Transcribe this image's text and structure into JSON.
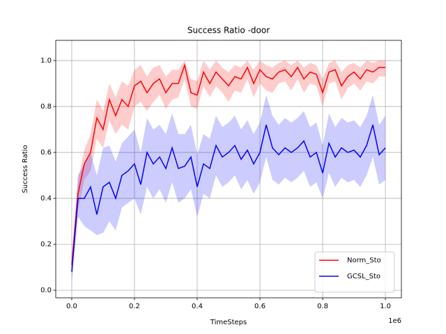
{
  "chart_data": {
    "type": "line",
    "title": "Success Ratio -door",
    "x_label": "TimeSteps",
    "y_label": "Success Ratio",
    "x_offset_label": "1e6",
    "x": [
      0,
      0.02,
      0.04,
      0.06,
      0.08,
      0.1,
      0.12,
      0.14,
      0.16,
      0.18,
      0.2,
      0.22,
      0.24,
      0.26,
      0.28,
      0.3,
      0.32,
      0.34,
      0.36,
      0.38,
      0.4,
      0.42,
      0.44,
      0.46,
      0.48,
      0.5,
      0.52,
      0.54,
      0.56,
      0.58,
      0.6,
      0.62,
      0.64,
      0.66,
      0.68,
      0.7,
      0.72,
      0.74,
      0.76,
      0.78,
      0.8,
      0.82,
      0.84,
      0.86,
      0.88,
      0.9,
      0.92,
      0.94,
      0.96,
      0.98,
      1.0
    ],
    "series": [
      {
        "name": "Norm_Sto",
        "color": "#ff0000",
        "values": [
          0.11,
          0.42,
          0.55,
          0.6,
          0.75,
          0.7,
          0.83,
          0.76,
          0.83,
          0.8,
          0.89,
          0.91,
          0.86,
          0.9,
          0.92,
          0.86,
          0.9,
          0.9,
          0.98,
          0.86,
          0.85,
          0.95,
          0.9,
          0.95,
          0.92,
          0.89,
          0.93,
          0.92,
          0.97,
          0.9,
          0.96,
          0.93,
          0.92,
          0.95,
          0.96,
          0.93,
          0.97,
          0.92,
          0.95,
          0.94,
          0.86,
          0.95,
          0.96,
          0.89,
          0.93,
          0.95,
          0.92,
          0.96,
          0.95,
          0.97,
          0.97
        ],
        "lower": [
          0.07,
          0.35,
          0.48,
          0.52,
          0.66,
          0.62,
          0.74,
          0.68,
          0.72,
          0.7,
          0.8,
          0.82,
          0.78,
          0.82,
          0.85,
          0.79,
          0.83,
          0.84,
          0.92,
          0.8,
          0.79,
          0.89,
          0.84,
          0.89,
          0.86,
          0.82,
          0.87,
          0.86,
          0.92,
          0.84,
          0.9,
          0.87,
          0.86,
          0.9,
          0.91,
          0.87,
          0.92,
          0.86,
          0.9,
          0.89,
          0.8,
          0.9,
          0.91,
          0.83,
          0.88,
          0.9,
          0.87,
          0.91,
          0.9,
          0.93,
          0.93
        ],
        "upper": [
          0.15,
          0.48,
          0.61,
          0.68,
          0.83,
          0.78,
          0.9,
          0.84,
          0.91,
          0.89,
          0.96,
          0.98,
          0.93,
          0.97,
          0.98,
          0.93,
          0.96,
          0.96,
          1.0,
          0.92,
          0.91,
          1.0,
          0.96,
          1.0,
          0.97,
          0.95,
          0.98,
          0.97,
          1.0,
          0.96,
          1.0,
          0.98,
          0.97,
          0.99,
          1.0,
          0.98,
          1.0,
          0.97,
          0.99,
          0.98,
          0.92,
          0.99,
          1.0,
          0.95,
          0.98,
          0.99,
          0.97,
          1.0,
          0.99,
          1.0,
          1.0
        ]
      },
      {
        "name": "GCSL_Sto",
        "color": "#0000ff",
        "values": [
          0.08,
          0.4,
          0.4,
          0.45,
          0.33,
          0.45,
          0.47,
          0.4,
          0.5,
          0.52,
          0.55,
          0.46,
          0.6,
          0.55,
          0.58,
          0.53,
          0.62,
          0.53,
          0.54,
          0.58,
          0.45,
          0.55,
          0.53,
          0.63,
          0.58,
          0.6,
          0.63,
          0.57,
          0.61,
          0.55,
          0.6,
          0.72,
          0.62,
          0.59,
          0.62,
          0.6,
          0.62,
          0.65,
          0.58,
          0.6,
          0.51,
          0.64,
          0.58,
          0.62,
          0.6,
          0.61,
          0.58,
          0.63,
          0.72,
          0.59,
          0.62
        ],
        "lower": [
          0.03,
          0.32,
          0.28,
          0.26,
          0.24,
          0.25,
          0.3,
          0.26,
          0.36,
          0.38,
          0.4,
          0.33,
          0.45,
          0.4,
          0.44,
          0.38,
          0.47,
          0.38,
          0.4,
          0.44,
          0.32,
          0.42,
          0.4,
          0.5,
          0.45,
          0.47,
          0.5,
          0.44,
          0.48,
          0.42,
          0.47,
          0.58,
          0.48,
          0.46,
          0.49,
          0.47,
          0.49,
          0.52,
          0.45,
          0.47,
          0.4,
          0.51,
          0.45,
          0.49,
          0.47,
          0.48,
          0.45,
          0.5,
          0.58,
          0.46,
          0.48
        ],
        "upper": [
          0.13,
          0.5,
          0.55,
          0.6,
          0.5,
          0.62,
          0.63,
          0.56,
          0.64,
          0.67,
          0.7,
          0.6,
          0.75,
          0.7,
          0.72,
          0.68,
          0.77,
          0.68,
          0.68,
          0.72,
          0.59,
          0.68,
          0.66,
          0.76,
          0.71,
          0.73,
          0.76,
          0.7,
          0.74,
          0.68,
          0.73,
          0.85,
          0.76,
          0.72,
          0.75,
          0.73,
          0.75,
          0.78,
          0.71,
          0.73,
          0.63,
          0.77,
          0.71,
          0.75,
          0.73,
          0.74,
          0.71,
          0.76,
          0.85,
          0.72,
          0.76
        ]
      }
    ],
    "band_opacity": 0.2,
    "xlim": [
      -0.051,
      1.051
    ],
    "ylim": [
      -0.033,
      1.088
    ],
    "xticks": [
      {
        "value": 0,
        "label": "0.0"
      },
      {
        "value": 0.2,
        "label": "0.2"
      },
      {
        "value": 0.4,
        "label": "0.4"
      },
      {
        "value": 0.6,
        "label": "0.6"
      },
      {
        "value": 0.8,
        "label": "0.8"
      },
      {
        "value": 1.0,
        "label": "1.0"
      }
    ],
    "yticks": [
      {
        "value": 0,
        "label": "0.0"
      },
      {
        "value": 0.2,
        "label": "0.2"
      },
      {
        "value": 0.4,
        "label": "0.4"
      },
      {
        "value": 0.6,
        "label": "0.6"
      },
      {
        "value": 0.8,
        "label": "0.8"
      },
      {
        "value": 1.0,
        "label": "1.0"
      }
    ],
    "grid": true,
    "legend_position": "lower right"
  }
}
